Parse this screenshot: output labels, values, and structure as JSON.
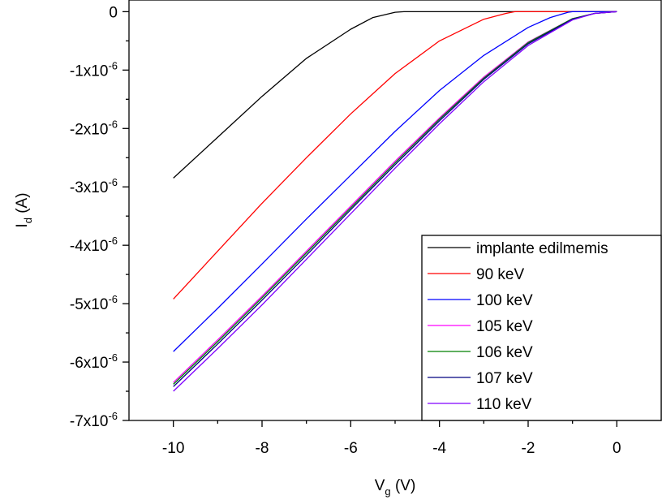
{
  "chart_data": {
    "type": "line",
    "xlabel": "V",
    "xlabel_sub": "g",
    "xlabel_unit": "(V)",
    "ylabel": "I",
    "ylabel_sub": "d",
    "ylabel_unit": "(A)",
    "xlim": [
      -11,
      1
    ],
    "ylim": [
      -7e-06,
      2e-07
    ],
    "x_ticks": [
      -10,
      -8,
      -6,
      -4,
      -2,
      0
    ],
    "x_tick_labels": [
      "-10",
      "-8",
      "-6",
      "-4",
      "-2",
      "0"
    ],
    "y_ticks": [
      0,
      -1e-06,
      -2e-06,
      -3e-06,
      -4e-06,
      -5e-06,
      -6e-06,
      -7e-06
    ],
    "y_tick_labels": [
      {
        "mant": "0",
        "exp": ""
      },
      {
        "mant": "-1x10",
        "exp": "-6"
      },
      {
        "mant": "-2x10",
        "exp": "-6"
      },
      {
        "mant": "-3x10",
        "exp": "-6"
      },
      {
        "mant": "-4x10",
        "exp": "-6"
      },
      {
        "mant": "-5x10",
        "exp": "-6"
      },
      {
        "mant": "-6x10",
        "exp": "-6"
      },
      {
        "mant": "-7x10",
        "exp": "-6"
      }
    ],
    "grid": false,
    "legend_position": "bottom-right",
    "series": [
      {
        "name": "implante edilmemis",
        "color": "#000000",
        "x": [
          -10,
          -9,
          -8,
          -7,
          -6,
          -5.5,
          -5,
          -4.8,
          -4,
          -2,
          0
        ],
        "y": [
          -2.85e-06,
          -2.15e-06,
          -1.45e-06,
          -8e-07,
          -3e-07,
          -1e-07,
          -1e-08,
          0,
          0,
          0,
          0
        ]
      },
      {
        "name": "90 keV",
        "color": "#ff0000",
        "x": [
          -10,
          -9,
          -8,
          -7,
          -6,
          -5,
          -4,
          -3,
          -2.5,
          -2.3,
          -2,
          0
        ],
        "y": [
          -4.92e-06,
          -4.1e-06,
          -3.28e-06,
          -2.5e-06,
          -1.75e-06,
          -1.06e-06,
          -5e-07,
          -1.3e-07,
          -3e-08,
          0,
          0,
          0
        ]
      },
      {
        "name": "100 keV",
        "color": "#0000ff",
        "x": [
          -10,
          -9,
          -8,
          -7,
          -6,
          -5,
          -4,
          -3,
          -2,
          -1.5,
          -1.1,
          -1,
          0
        ],
        "y": [
          -5.82e-06,
          -5.08e-06,
          -4.32e-06,
          -3.55e-06,
          -2.8e-06,
          -2.05e-06,
          -1.35e-06,
          -7.5e-07,
          -2.7e-07,
          -1e-07,
          -1e-08,
          0,
          0
        ]
      },
      {
        "name": "105 keV",
        "color": "#ff00ff",
        "x": [
          -10,
          -9,
          -8,
          -7,
          -6,
          -5,
          -4,
          -3,
          -2,
          -1,
          -0.5,
          0
        ],
        "y": [
          -6.35e-06,
          -5.62e-06,
          -4.87e-06,
          -4.1e-06,
          -3.33e-06,
          -2.56e-06,
          -1.82e-06,
          -1.12e-06,
          -5.2e-07,
          -1.2e-07,
          -3e-08,
          0
        ]
      },
      {
        "name": "106 keV",
        "color": "#008000",
        "x": [
          -10,
          -9,
          -8,
          -7,
          -6,
          -5,
          -4,
          -3,
          -2,
          -1,
          -0.5,
          0
        ],
        "y": [
          -6.38e-06,
          -5.65e-06,
          -4.9e-06,
          -4.13e-06,
          -3.36e-06,
          -2.59e-06,
          -1.84e-06,
          -1.14e-06,
          -5.3e-07,
          -1.2e-07,
          -3e-08,
          0
        ]
      },
      {
        "name": "107 keV",
        "color": "#000080",
        "x": [
          -10,
          -9,
          -8,
          -7,
          -6,
          -5,
          -4,
          -3,
          -2,
          -1,
          -0.5,
          0
        ],
        "y": [
          -6.42e-06,
          -5.69e-06,
          -4.94e-06,
          -4.17e-06,
          -3.39e-06,
          -2.62e-06,
          -1.87e-06,
          -1.16e-06,
          -5.5e-07,
          -1.3e-07,
          -3e-08,
          0
        ]
      },
      {
        "name": "110 keV",
        "color": "#8000ff",
        "x": [
          -10,
          -9,
          -8,
          -7,
          -6,
          -5,
          -4,
          -3,
          -2,
          -1,
          -0.5,
          0
        ],
        "y": [
          -6.5e-06,
          -5.77e-06,
          -5.02e-06,
          -4.24e-06,
          -3.46e-06,
          -2.68e-06,
          -1.92e-06,
          -1.2e-06,
          -5.8e-07,
          -1.4e-07,
          -3e-08,
          0
        ]
      }
    ]
  }
}
